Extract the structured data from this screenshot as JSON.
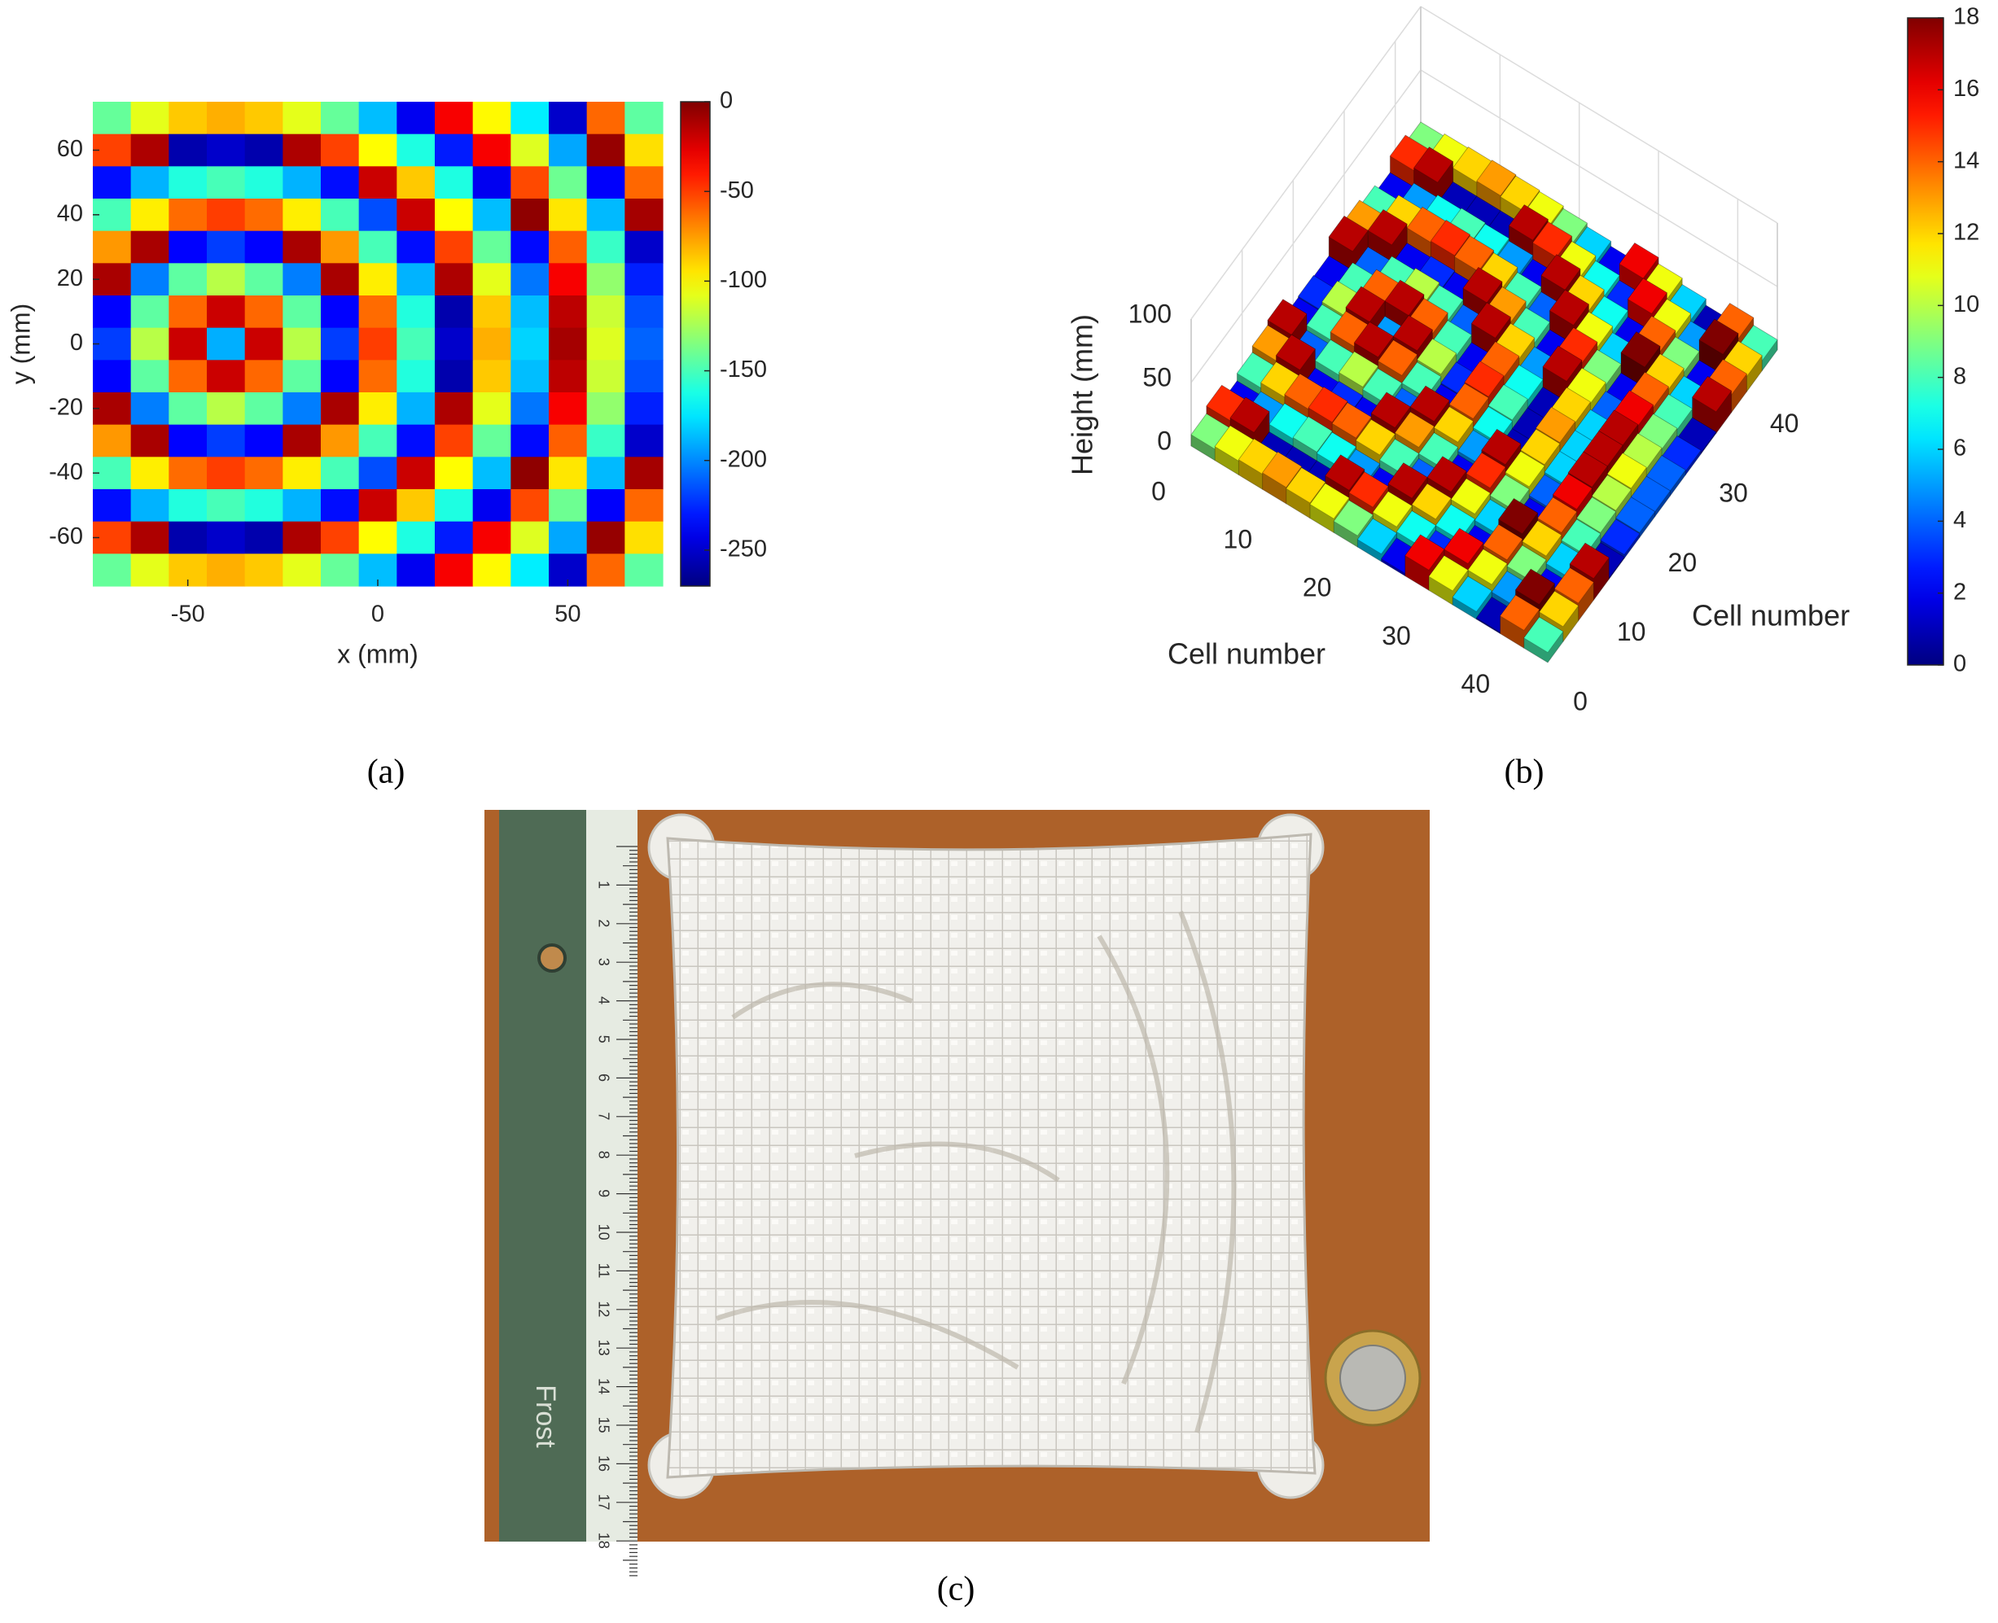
{
  "chart_data": [
    {
      "type": "heatmap",
      "caption": "(a)",
      "x_label": "x (mm)",
      "y_label": "y (mm)",
      "xlim": [
        -75,
        75
      ],
      "ylim": [
        -75,
        75
      ],
      "xticks": [
        -50,
        0,
        50
      ],
      "yticks": [
        60,
        40,
        20,
        0,
        -20,
        -40,
        -60
      ],
      "clim": [
        -270,
        0
      ],
      "cticks": [
        0,
        -50,
        -100,
        -150,
        -200,
        -250
      ],
      "colormap": "jet",
      "x": [
        -70,
        -60,
        -50,
        -40,
        -30,
        -20,
        -10,
        0,
        10,
        20,
        30,
        40,
        50,
        60,
        70
      ],
      "y": [
        70,
        60,
        50,
        40,
        30,
        20,
        10,
        0,
        -10,
        -20,
        -30,
        -40,
        -50,
        -60,
        -70
      ],
      "z": [
        [
          -142,
          -108,
          -87,
          -80,
          -87,
          -108,
          -142,
          -186,
          -240,
          -32,
          -100,
          -173,
          -250,
          -61,
          -144
        ],
        [
          -51,
          -12,
          -258,
          -250,
          -258,
          -12,
          -51,
          -101,
          -161,
          -229,
          -32,
          -110,
          -192,
          -6,
          -93
        ],
        [
          -233,
          -189,
          -160,
          -150,
          -160,
          -189,
          -233,
          -20,
          -87,
          -161,
          -240,
          -53,
          -140,
          -237,
          -61
        ],
        [
          -150,
          -97,
          -62,
          -50,
          -62,
          -97,
          -150,
          -216,
          -20,
          -101,
          -186,
          -4,
          -95,
          -187,
          -10
        ],
        [
          -74,
          -11,
          -236,
          -220,
          -236,
          -11,
          -74,
          -150,
          -233,
          -51,
          -142,
          -234,
          -59,
          -154,
          -250
        ],
        [
          -11,
          -203,
          -144,
          -120,
          -144,
          -203,
          -11,
          -97,
          -189,
          -12,
          -108,
          -205,
          -32,
          -130,
          -228
        ],
        [
          -236,
          -144,
          -61,
          -20,
          -61,
          -144,
          -236,
          -62,
          -160,
          -258,
          -87,
          -186,
          -16,
          -115,
          -215
        ],
        [
          -220,
          -120,
          -20,
          -190,
          -20,
          -120,
          -220,
          -50,
          -150,
          -250,
          -80,
          -180,
          -10,
          -110,
          -210
        ],
        [
          -236,
          -144,
          -61,
          -20,
          -61,
          -144,
          -236,
          -62,
          -160,
          -258,
          -87,
          -186,
          -16,
          -115,
          -215
        ],
        [
          -11,
          -203,
          -144,
          -120,
          -144,
          -203,
          -11,
          -97,
          -189,
          -12,
          -108,
          -205,
          -32,
          -130,
          -228
        ],
        [
          -74,
          -11,
          -236,
          -220,
          -236,
          -11,
          -74,
          -150,
          -233,
          -51,
          -142,
          -234,
          -59,
          -154,
          -250
        ],
        [
          -150,
          -97,
          -62,
          -50,
          -62,
          -97,
          -150,
          -216,
          -20,
          -101,
          -186,
          -4,
          -95,
          -187,
          -10
        ],
        [
          -233,
          -189,
          -160,
          -150,
          -160,
          -189,
          -233,
          -20,
          -87,
          -161,
          -240,
          -53,
          -140,
          -237,
          -61
        ],
        [
          -51,
          -12,
          -258,
          -250,
          -258,
          -12,
          -51,
          -101,
          -161,
          -229,
          -32,
          -110,
          -192,
          -6,
          -93
        ],
        [
          -142,
          -108,
          -87,
          -80,
          -87,
          -108,
          -142,
          -186,
          -240,
          -32,
          -100,
          -173,
          -250,
          -61,
          -144
        ]
      ]
    },
    {
      "type": "surface3d",
      "caption": "(b)",
      "x_label": "Cell number",
      "y_label": "Cell number",
      "z_label": "Height (mm)",
      "xlim": [
        0,
        45
      ],
      "ylim": [
        0,
        45
      ],
      "zlim": [
        0,
        100
      ],
      "xticks": [
        0,
        10,
        20,
        30,
        40
      ],
      "yticks": [
        0,
        10,
        20,
        30,
        40
      ],
      "zticks": [
        0,
        50,
        100
      ],
      "clim": [
        0,
        18
      ],
      "cticks": [
        0,
        2,
        4,
        6,
        8,
        10,
        12,
        14,
        16,
        18
      ],
      "colormap": "jet",
      "x": [
        1.5,
        4.5,
        7.5,
        10.5,
        13.5,
        16.5,
        19.5,
        22.5,
        25.5,
        28.5,
        31.5,
        34.5,
        37.5,
        40.5,
        43.5
      ],
      "y": [
        1.5,
        4.5,
        7.5,
        10.5,
        13.5,
        16.5,
        19.5,
        22.5,
        25.5,
        28.5,
        31.5,
        34.5,
        37.5,
        40.5,
        43.5
      ],
      "z": [
        [
          9,
          11,
          12,
          13,
          12,
          11,
          9,
          6,
          2,
          16,
          11,
          6,
          1,
          14,
          8
        ],
        [
          15,
          17,
          1,
          1,
          1,
          17,
          15,
          11,
          7,
          3,
          16,
          11,
          5,
          18,
          12
        ],
        [
          2,
          5,
          7,
          8,
          7,
          5,
          2,
          17,
          12,
          7,
          2,
          14,
          9,
          2,
          14
        ],
        [
          8,
          12,
          14,
          15,
          14,
          12,
          8,
          4,
          17,
          11,
          6,
          18,
          12,
          6,
          17
        ],
        [
          13,
          17,
          2,
          3,
          2,
          17,
          13,
          8,
          2,
          15,
          9,
          2,
          14,
          8,
          1
        ],
        [
          17,
          4,
          8,
          10,
          8,
          4,
          17,
          12,
          5,
          17,
          11,
          4,
          16,
          9,
          3
        ],
        [
          2,
          8,
          14,
          17,
          14,
          8,
          2,
          14,
          7,
          1,
          12,
          6,
          17,
          10,
          4
        ],
        [
          3,
          10,
          17,
          5,
          17,
          10,
          3,
          15,
          8,
          1,
          13,
          6,
          17,
          11,
          4
        ],
        [
          2,
          8,
          14,
          17,
          14,
          8,
          2,
          14,
          7,
          1,
          12,
          6,
          17,
          10,
          4
        ],
        [
          17,
          4,
          8,
          10,
          8,
          4,
          17,
          12,
          5,
          17,
          11,
          4,
          16,
          9,
          3
        ],
        [
          13,
          17,
          2,
          3,
          2,
          17,
          13,
          8,
          2,
          15,
          9,
          2,
          14,
          8,
          1
        ],
        [
          8,
          12,
          14,
          15,
          14,
          12,
          8,
          4,
          17,
          11,
          6,
          18,
          12,
          6,
          17
        ],
        [
          2,
          5,
          7,
          8,
          7,
          5,
          2,
          17,
          12,
          7,
          2,
          14,
          9,
          2,
          14
        ],
        [
          15,
          17,
          1,
          1,
          1,
          17,
          15,
          11,
          7,
          3,
          16,
          11,
          5,
          18,
          12
        ],
        [
          9,
          11,
          12,
          13,
          12,
          11,
          9,
          6,
          2,
          16,
          11,
          6,
          1,
          14,
          8
        ]
      ]
    }
  ],
  "photo": {
    "caption": "(c)",
    "ruler_brand": "Frost",
    "ruler_labels": [
      1,
      2,
      3,
      4,
      5,
      6,
      7,
      8,
      9,
      10,
      11,
      12,
      13,
      14,
      15,
      16,
      17,
      18
    ]
  }
}
